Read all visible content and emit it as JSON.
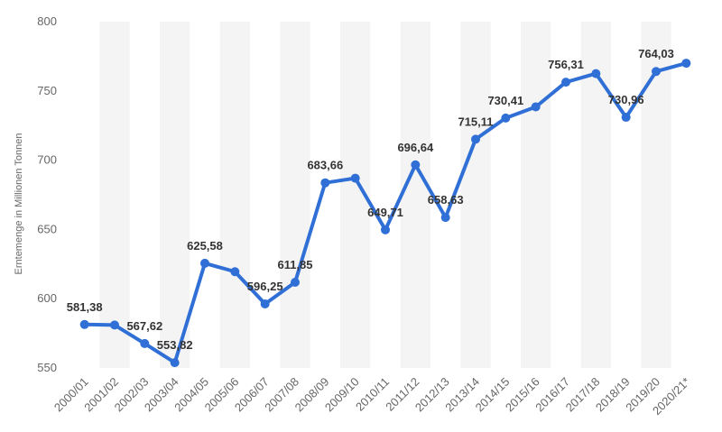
{
  "chart_data": {
    "type": "line",
    "title": "",
    "xlabel": "",
    "ylabel": "Erntemenge in Millionen Tonnen",
    "ylim": [
      550,
      800
    ],
    "yticks": [
      550,
      600,
      650,
      700,
      750,
      800
    ],
    "ytick_labels": [
      "550",
      "600",
      "650",
      "700",
      "750",
      "800"
    ],
    "grid": "alternating vertical bands",
    "line_color": "#2f6fd6",
    "band_color": "#f4f4f4",
    "categories": [
      "2000/01",
      "2001/02",
      "2002/03",
      "2003/04",
      "2004/05",
      "2005/06",
      "2006/07",
      "2007/08",
      "2008/09",
      "2009/10",
      "2010/11",
      "2011/12",
      "2012/13",
      "2013/14",
      "2014/15",
      "2015/16",
      "2016/17",
      "2017/18",
      "2018/19",
      "2019/20",
      "2020/21*"
    ],
    "values": [
      581.38,
      581.0,
      567.62,
      553.82,
      625.58,
      619.5,
      596.25,
      611.85,
      683.66,
      687.0,
      649.71,
      696.64,
      658.63,
      715.11,
      730.41,
      738.5,
      756.31,
      762.5,
      730.96,
      764.03,
      770.0
    ],
    "labels": [
      "581,38",
      "",
      "567,62",
      "553,82",
      "625,58",
      "",
      "596,25",
      "611,85",
      "683,66",
      "",
      "649,71",
      "696,64",
      "658,63",
      "715,11",
      "730,41",
      "",
      "756,31",
      "",
      "730,96",
      "764,03",
      ""
    ]
  }
}
